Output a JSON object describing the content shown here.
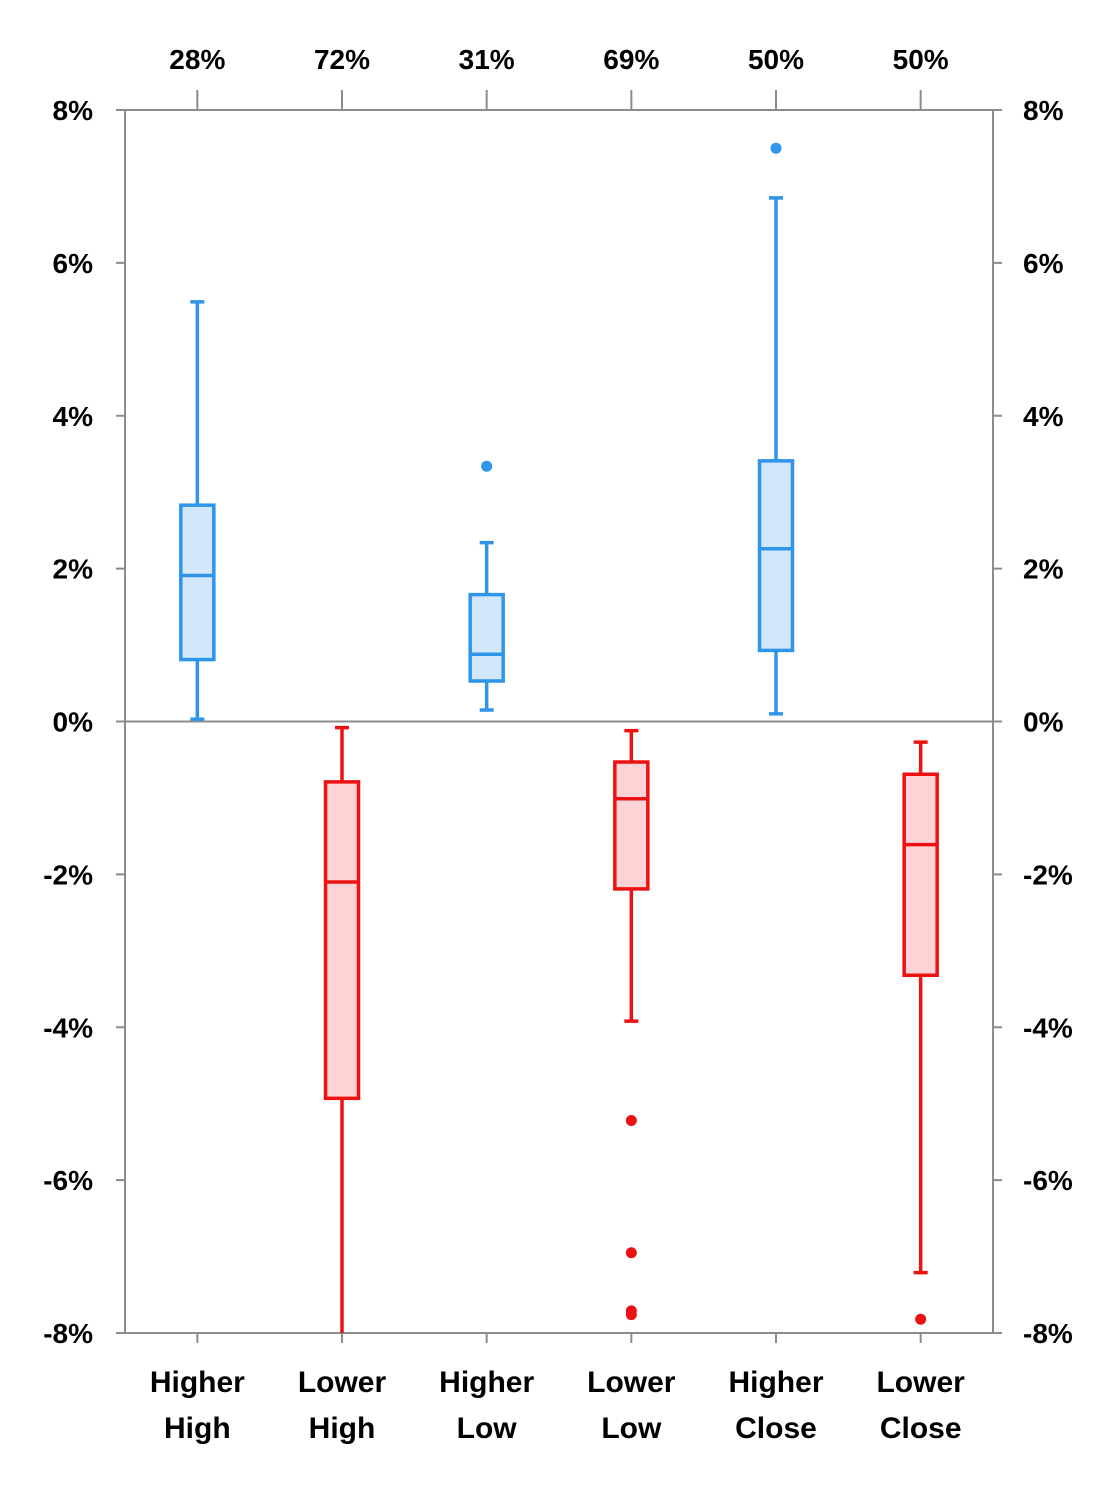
{
  "chart_data": {
    "type": "box",
    "y_axis": {
      "ylim": [
        -0.08,
        0.08
      ],
      "ticks": [
        0.08,
        0.06,
        0.04,
        0.02,
        0,
        -0.02,
        -0.04,
        -0.06,
        -0.08
      ],
      "tick_labels": [
        "8%",
        "6%",
        "4%",
        "2%",
        "0%",
        "-2%",
        "-4%",
        "-6%",
        "-8%"
      ],
      "secondary_axis_mirrored": true
    },
    "grid": false,
    "colors": {
      "positive": "#2e95ea",
      "positive_fill": "#d2e7fb",
      "negative": "#ee1111",
      "negative_fill": "#fdd3d6",
      "axis": "#8c8c8c"
    },
    "categories": [
      {
        "label_line1": "Higher",
        "label_line2": "High",
        "top_label": "28%",
        "color": "positive",
        "whisker_low": 0.0003,
        "q1": 0.0081,
        "median": 0.0191,
        "q3": 0.0283,
        "whisker_high": 0.0549,
        "outliers": []
      },
      {
        "label_line1": "Lower",
        "label_line2": "High",
        "top_label": "72%",
        "color": "negative",
        "whisker_low": -0.08,
        "q1": -0.0493,
        "median": -0.021,
        "q3": -0.0079,
        "whisker_high": -0.0008,
        "outliers": []
      },
      {
        "label_line1": "Higher",
        "label_line2": "Low",
        "top_label": "31%",
        "color": "positive",
        "whisker_low": 0.0015,
        "q1": 0.0053,
        "median": 0.0088,
        "q3": 0.0166,
        "whisker_high": 0.0234,
        "outliers": [
          0.0334
        ]
      },
      {
        "label_line1": "Lower",
        "label_line2": "Low",
        "top_label": "69%",
        "color": "negative",
        "whisker_low": -0.0392,
        "q1": -0.0219,
        "median": -0.0101,
        "q3": -0.0053,
        "whisker_high": -0.0012,
        "outliers": [
          -0.0522,
          -0.0695,
          -0.0771,
          -0.0776
        ]
      },
      {
        "label_line1": "Higher",
        "label_line2": "Close",
        "top_label": "50%",
        "color": "positive",
        "whisker_low": 0.001,
        "q1": 0.0093,
        "median": 0.0226,
        "q3": 0.0341,
        "whisker_high": 0.0685,
        "outliers": [
          0.075
        ]
      },
      {
        "label_line1": "Lower",
        "label_line2": "Close",
        "top_label": "50%",
        "color": "negative",
        "whisker_low": -0.0721,
        "q1": -0.0332,
        "median": -0.0161,
        "q3": -0.0069,
        "whisker_high": -0.0027,
        "outliers": [
          -0.0782
        ]
      }
    ]
  }
}
